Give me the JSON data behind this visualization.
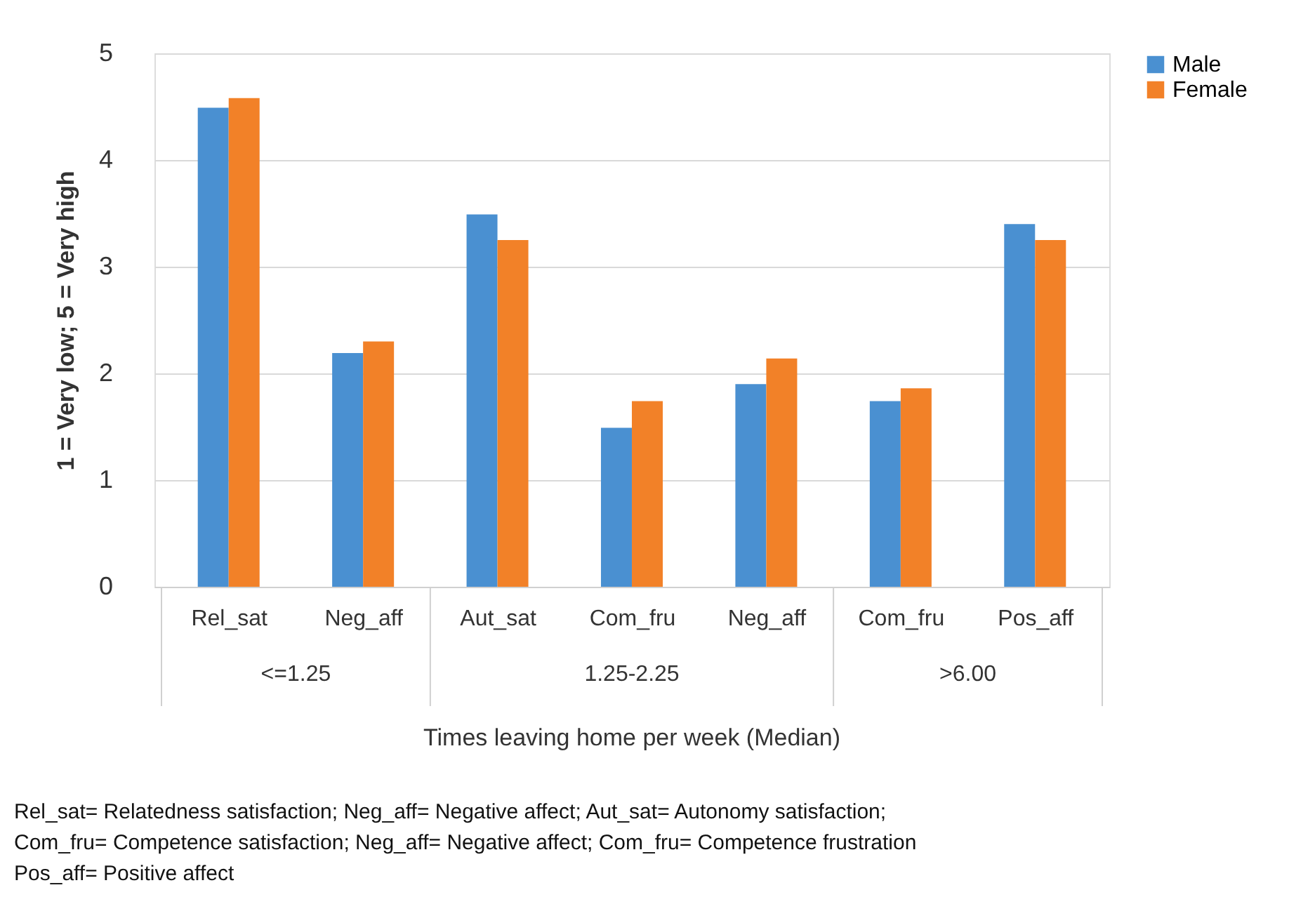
{
  "chart_data": {
    "type": "bar",
    "categories": [
      "Rel_sat",
      "Neg_aff",
      "Aut_sat",
      "Com_fru",
      "Neg_aff",
      "Com_fru",
      "Pos_aff"
    ],
    "series": [
      {
        "name": "Male",
        "color": "#4a90d1",
        "values": [
          4.49,
          2.19,
          3.49,
          1.49,
          1.9,
          1.74,
          3.4
        ]
      },
      {
        "name": "Female",
        "color": "#f28128",
        "values": [
          4.58,
          2.3,
          3.25,
          1.74,
          2.14,
          1.86,
          3.25
        ]
      }
    ],
    "xlabel": "Times leaving home per week (Median)",
    "ylabel": "1 = Very low; 5 = Very high",
    "ylim": [
      0,
      5
    ],
    "yticks": [
      0,
      1,
      2,
      3,
      4,
      5
    ],
    "grid": "y",
    "legend": "right",
    "annotations": [
      "<=1.25",
      "1.25-2.25",
      ">6.00",
      "Rel_sat= Relatedness satisfaction; Neg_aff= Negative affect; Aut_sat= Autonomy satisfaction;",
      "Com_fru= Competence satisfaction; Neg_aff= Negative affect;  Com_fru= Competence frustration",
      "Pos_aff= Positive affect"
    ]
  }
}
